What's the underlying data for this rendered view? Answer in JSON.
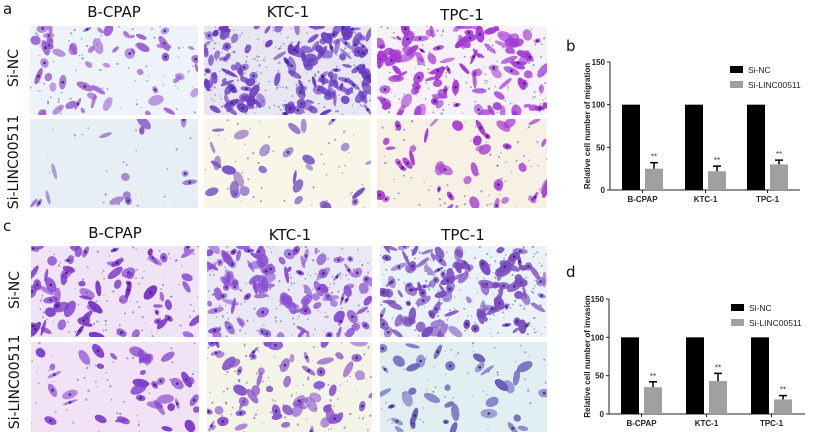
{
  "figure": {
    "panels": {
      "a": {
        "letter": "a",
        "columns": [
          "B-CPAP",
          "KTC-1",
          "TPC-1"
        ],
        "rows": [
          "Si-NC",
          "Si-LINC00511"
        ],
        "assay": "migration",
        "backgrounds": [
          [
            "#eef3fa",
            "#e9e6f3",
            "#f6f0f7"
          ],
          [
            "#e8eef6",
            "#f7f6e8",
            "#f7f0e4"
          ]
        ],
        "stain_colors": [
          [
            "#9b5fd0",
            "#6a3cc0",
            "#a43ad4"
          ],
          [
            "#8a5ac8",
            "#7d55c4",
            "#a83ad0"
          ]
        ],
        "densities": [
          [
            55,
            140,
            110
          ],
          [
            14,
            28,
            40
          ]
        ]
      },
      "c": {
        "letter": "c",
        "columns": [
          "B-CPAP",
          "KTC-1",
          "TPC-1"
        ],
        "rows": [
          "Si-NC",
          "Si-LINC00511"
        ],
        "assay": "invasion",
        "backgrounds": [
          [
            "#f1e3f6",
            "#ebe8f5",
            "#eaf2f7"
          ],
          [
            "#f2e2f6",
            "#f4f3e8",
            "#e1eff2"
          ]
        ],
        "stain_colors": [
          [
            "#7a36c8",
            "#8a4fd0",
            "#7a4cc0"
          ],
          [
            "#8040cc",
            "#8a55cc",
            "#6a60b8"
          ]
        ],
        "densities": [
          [
            70,
            110,
            120
          ],
          [
            38,
            60,
            35
          ]
        ]
      },
      "b": {
        "letter": "b"
      },
      "d": {
        "letter": "d"
      }
    }
  },
  "chart_data": [
    {
      "panel": "b",
      "type": "bar",
      "title": "",
      "xlabel": "",
      "ylabel": "Relative cell number of migration",
      "categories": [
        "B-CPAP",
        "KTC-1",
        "TPC-1"
      ],
      "ylim": [
        0,
        150
      ],
      "yticks": [
        0,
        50,
        100,
        150
      ],
      "grid": false,
      "legend_position": "upper right",
      "series": [
        {
          "name": "Si-NC",
          "color": "#000000",
          "values": [
            100,
            100,
            100
          ],
          "errors": [
            0,
            0,
            0
          ]
        },
        {
          "name": "Si-LINC00511",
          "color": "#a0a0a0",
          "values": [
            25,
            22,
            30
          ],
          "errors": [
            7,
            6,
            5
          ]
        }
      ],
      "annotations": [
        "**",
        "**",
        "**"
      ]
    },
    {
      "panel": "d",
      "type": "bar",
      "title": "",
      "xlabel": "",
      "ylabel": "Relative cell number of invasion",
      "categories": [
        "B-CPAP",
        "KTC-1",
        "TPC-1"
      ],
      "ylim": [
        0,
        150
      ],
      "yticks": [
        0,
        50,
        100,
        150
      ],
      "grid": false,
      "legend_position": "upper right",
      "series": [
        {
          "name": "Si-NC",
          "color": "#000000",
          "values": [
            100,
            100,
            100
          ],
          "errors": [
            0,
            0,
            0
          ]
        },
        {
          "name": "Si-LINC00511",
          "color": "#a0a0a0",
          "values": [
            35,
            43,
            19
          ],
          "errors": [
            7,
            10,
            5
          ]
        }
      ],
      "annotations": [
        "**",
        "**",
        "**"
      ]
    }
  ]
}
